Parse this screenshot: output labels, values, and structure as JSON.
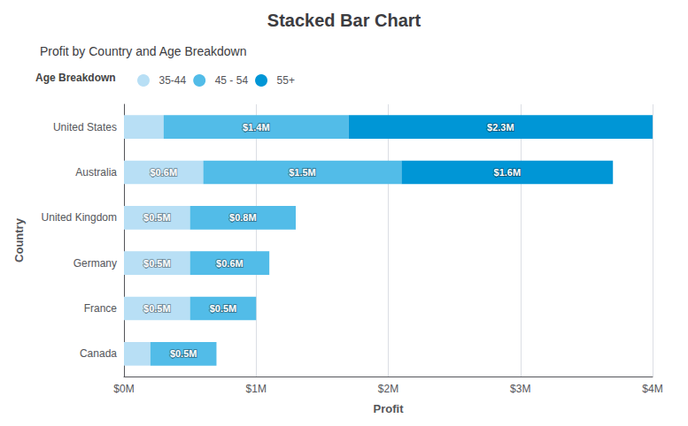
{
  "chart_data": {
    "type": "bar",
    "orientation": "horizontal",
    "stacked": true,
    "title": "Stacked Bar Chart",
    "subtitle": "Profit by Country and Age Breakdown",
    "legend_title": "Age Breakdown",
    "xlabel": "Profit",
    "ylabel": "Country",
    "categories": [
      "Canada",
      "France",
      "Germany",
      "United Kingdom",
      "Australia",
      "United States"
    ],
    "series": [
      {
        "name": "35-44",
        "color": "#b8dff5",
        "values": [
          0.2,
          0.5,
          0.5,
          0.5,
          0.6,
          0.3
        ],
        "value_labels": [
          null,
          "$0.5M",
          "$0.5M",
          "$0.5M",
          "$0.6M",
          null
        ]
      },
      {
        "name": "45 - 54",
        "color": "#52bce8",
        "values": [
          0.5,
          0.5,
          0.6,
          0.8,
          1.5,
          1.4
        ],
        "value_labels": [
          "$0.5M",
          "$0.5M",
          "$0.6M",
          "$0.8M",
          "$1.5M",
          "$1.4M"
        ]
      },
      {
        "name": "55+",
        "color": "#0096d6",
        "values": [
          0.0,
          0.0,
          0.0,
          0.0,
          1.6,
          2.3
        ],
        "value_labels": [
          null,
          null,
          null,
          null,
          "$1.6M",
          "$2.3M"
        ]
      }
    ],
    "xlim": [
      0,
      4.0
    ],
    "xticks": [
      {
        "value": 0,
        "label": "$0M"
      },
      {
        "value": 1,
        "label": "$1M"
      },
      {
        "value": 2,
        "label": "$2M"
      },
      {
        "value": 3,
        "label": "$3M"
      },
      {
        "value": 4,
        "label": "$4M"
      }
    ],
    "grid": true,
    "legend": "top",
    "data_labels": true
  }
}
